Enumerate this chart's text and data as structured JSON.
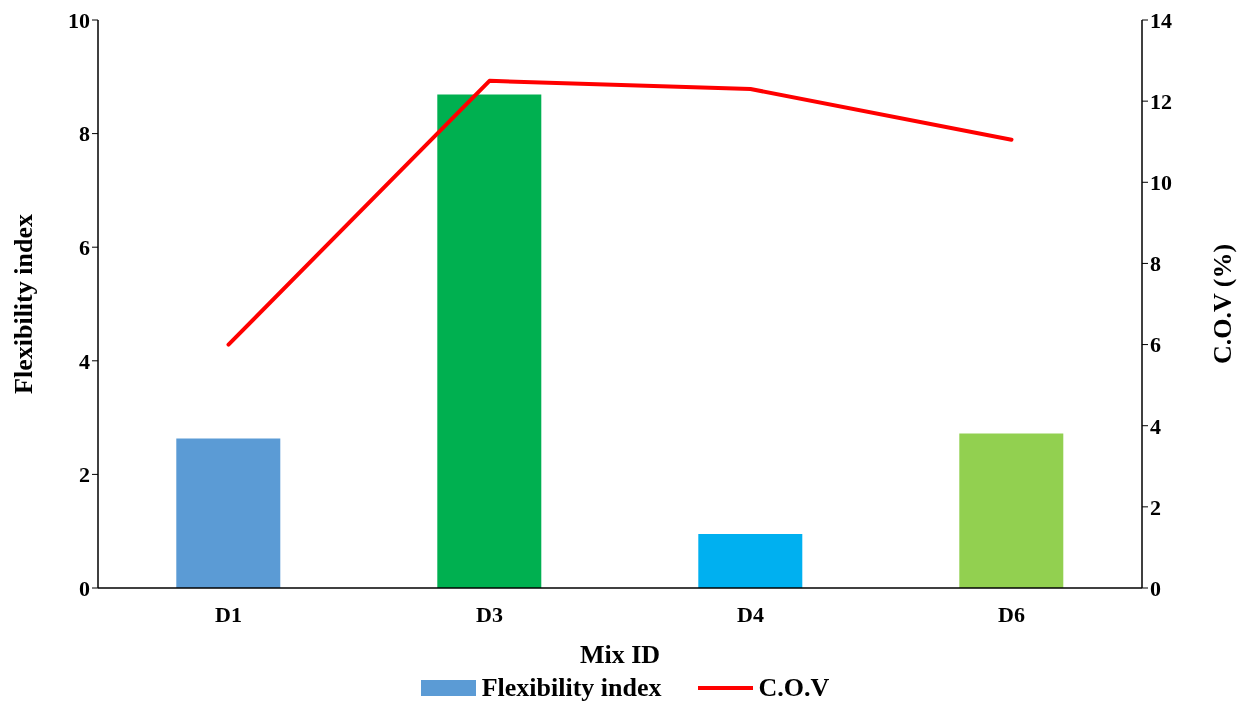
{
  "chart_data": {
    "type": "bar",
    "xlabel": "Mix ID",
    "ylabel": "Flexibility index",
    "y2label": "C.O.V (%)",
    "categories": [
      "D1",
      "D3",
      "D4",
      "D6"
    ],
    "series": [
      {
        "name": "Flexibility index",
        "colors": [
          "#5b9bd5",
          "#00b050",
          "#00b0f0",
          "#92d050"
        ],
        "values": [
          2.63,
          8.69,
          0.95,
          2.72
        ]
      },
      {
        "name": "C.O.V",
        "type": "line",
        "color": "#ff0000",
        "axis": "y2",
        "marker": "none",
        "values": [
          6.0,
          12.5,
          12.3,
          11.05
        ]
      }
    ],
    "ylim": [
      0,
      10
    ],
    "yticks": [
      0,
      2,
      4,
      6,
      8,
      10
    ],
    "y2lim": [
      0,
      14
    ],
    "y2ticks": [
      0,
      2,
      4,
      6,
      8,
      10,
      12,
      14
    ],
    "grid": false,
    "legend": "bottom"
  }
}
